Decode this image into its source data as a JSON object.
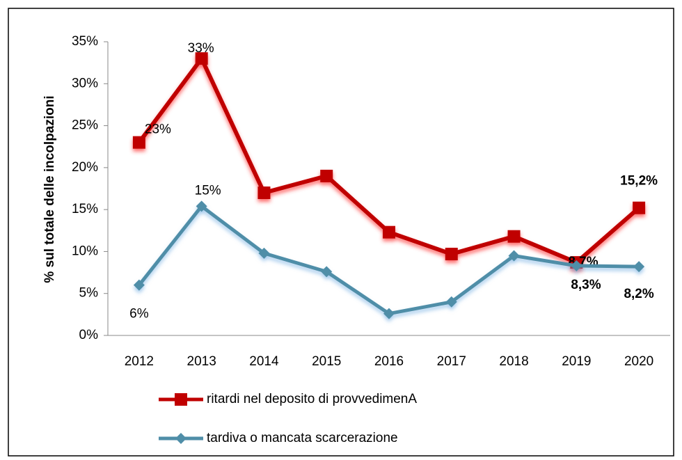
{
  "chart_data": {
    "type": "line",
    "y_label": "% sul totale delle incolpazioni",
    "categories": [
      "2012",
      "2013",
      "2014",
      "2015",
      "2016",
      "2017",
      "2018",
      "2019",
      "2020"
    ],
    "series": [
      {
        "name": "ritardi nel deposito di provvedimenA",
        "color": "#c00000",
        "marker": "square",
        "values": [
          23,
          33,
          17,
          19,
          12.3,
          9.7,
          11.8,
          8.7,
          15.2
        ],
        "value_labels": [
          "23%",
          "33%",
          null,
          null,
          null,
          null,
          null,
          "8,7%",
          "15,2%"
        ]
      },
      {
        "name": "tardiva o mancata scarcerazione",
        "color": "#4f8ea8",
        "marker": "diamond",
        "values": [
          6,
          15.4,
          9.8,
          7.6,
          2.6,
          4.0,
          9.5,
          8.3,
          8.2
        ],
        "value_labels": [
          "6%",
          "15%",
          null,
          null,
          null,
          null,
          null,
          "8,3%",
          "8,2%"
        ]
      }
    ],
    "ylim": [
      0,
      35
    ],
    "yticks": [
      {
        "value": 0,
        "label": "0%"
      },
      {
        "value": 5,
        "label": "5%"
      },
      {
        "value": 10,
        "label": "10%"
      },
      {
        "value": 15,
        "label": "15%"
      },
      {
        "value": 20,
        "label": "20%"
      },
      {
        "value": 25,
        "label": "25%"
      },
      {
        "value": 30,
        "label": "30%"
      },
      {
        "value": 35,
        "label": "35%"
      }
    ],
    "legend": "bottom"
  }
}
